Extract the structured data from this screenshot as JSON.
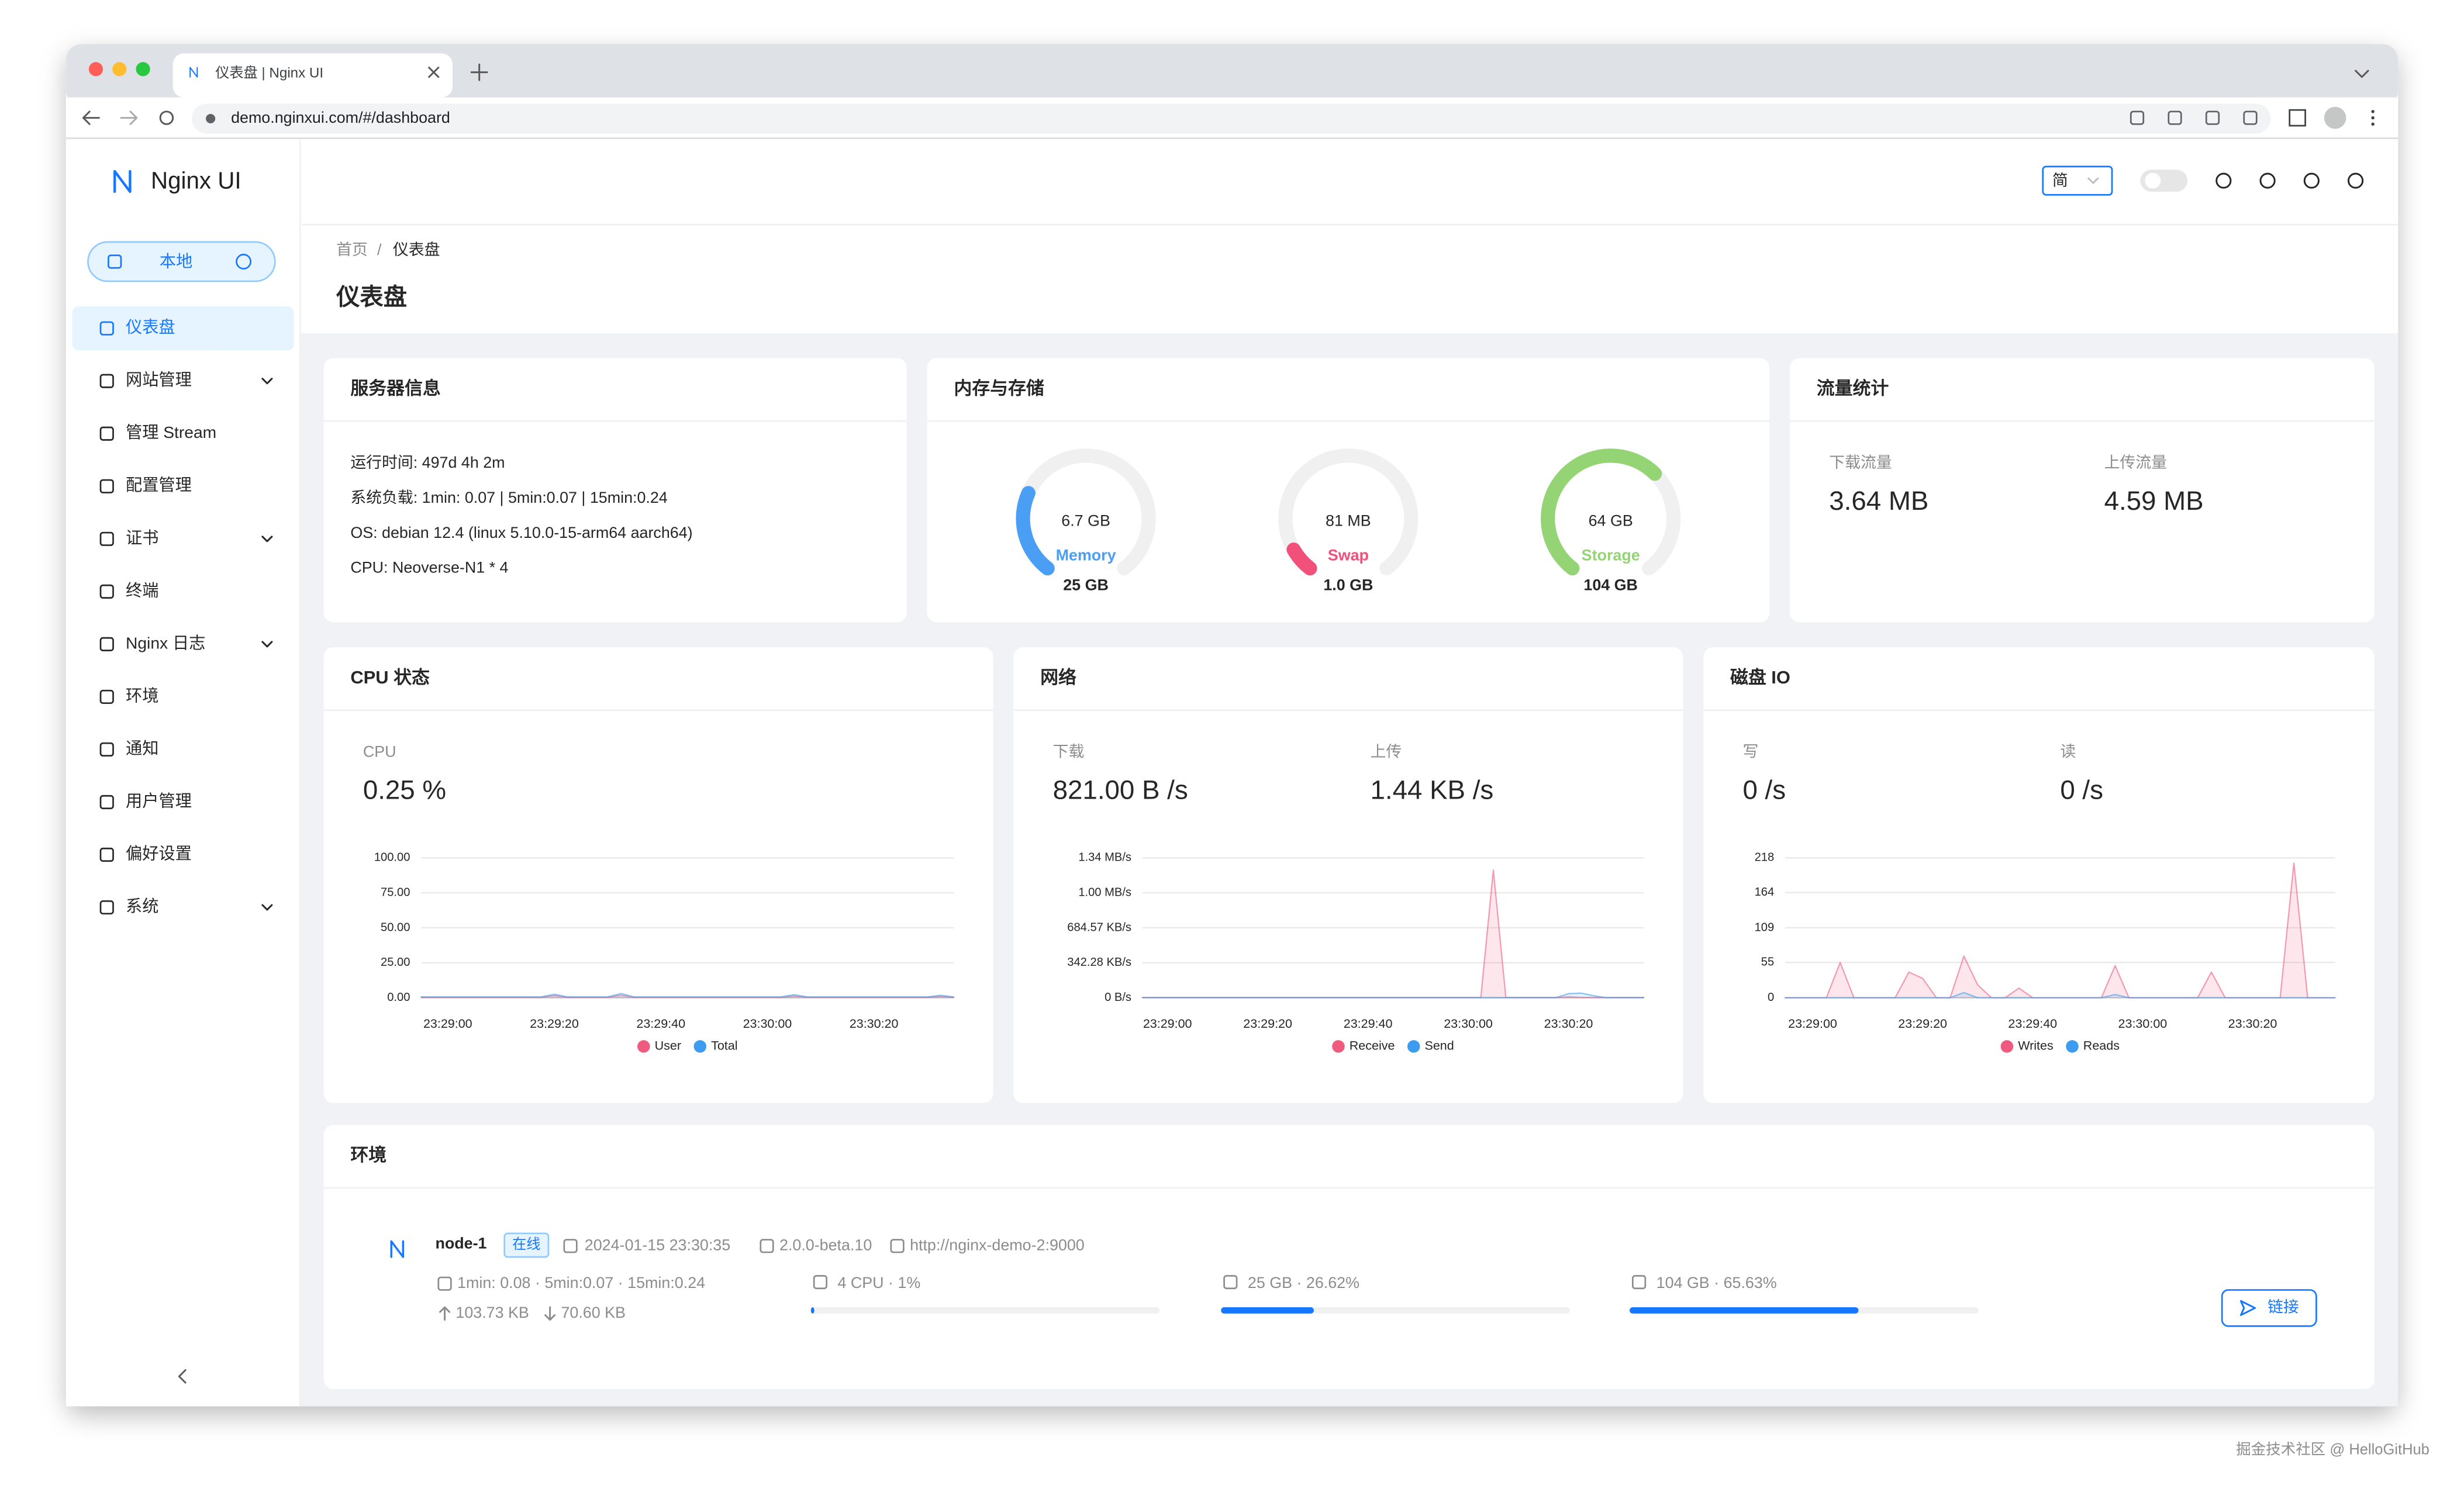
{
  "browser": {
    "tab_title": "仪表盘 | Nginx UI",
    "url": "demo.nginxui.com/#/dashboard"
  },
  "sidebar": {
    "logo": "Nginx UI",
    "node": "本地",
    "menu": [
      {
        "label": "仪表盘",
        "active": true
      },
      {
        "label": "网站管理",
        "expandable": true
      },
      {
        "label": "管理 Stream"
      },
      {
        "label": "配置管理"
      },
      {
        "label": "证书",
        "expandable": true
      },
      {
        "label": "终端"
      },
      {
        "label": "Nginx 日志",
        "expandable": true
      },
      {
        "label": "环境"
      },
      {
        "label": "通知"
      },
      {
        "label": "用户管理"
      },
      {
        "label": "偏好设置"
      },
      {
        "label": "系统",
        "expandable": true
      }
    ]
  },
  "header": {
    "lang": "简"
  },
  "breadcrumb": {
    "items": [
      "首页",
      "仪表盘"
    ],
    "separator": "/"
  },
  "page_title": "仪表盘",
  "server_info": {
    "title": "服务器信息",
    "lines": [
      "运行时间: 497d 4h 2m",
      "系统负载: 1min: 0.07 | 5min:0.07 | 15min:0.24",
      "OS: debian 12.4 (linux 5.10.0-15-arm64 aarch64)",
      "CPU: Neoverse-N1 * 4"
    ]
  },
  "memory": {
    "title": "内存与存储",
    "gauges": [
      {
        "used": "6.7 GB",
        "name": "Memory",
        "total": "25 GB",
        "percent": 26.8,
        "color": "#4a9ff5"
      },
      {
        "used": "81 MB",
        "name": "Swap",
        "total": "1.0 GB",
        "percent": 8,
        "color": "#f0507a"
      },
      {
        "used": "64 GB",
        "name": "Storage",
        "total": "104 GB",
        "percent": 65.63,
        "color": "#95d475"
      }
    ]
  },
  "traffic": {
    "title": "流量统计",
    "items": [
      {
        "label": "下载流量",
        "value": "3.64 MB"
      },
      {
        "label": "上传流量",
        "value": "4.59 MB"
      }
    ]
  },
  "cpu": {
    "title": "CPU 状态",
    "stats": [
      {
        "label": "CPU",
        "value": "0.25 %"
      }
    ],
    "categories": [
      null,
      null,
      "23:29:00",
      null,
      null,
      null,
      null,
      null,
      null,
      null,
      "23:29:20",
      null,
      null,
      null,
      null,
      null,
      null,
      null,
      "23:29:40",
      null,
      null,
      null,
      null,
      null,
      null,
      null,
      "23:30:00",
      null,
      null,
      null,
      null,
      null,
      null,
      null,
      "23:30:20",
      null,
      null,
      null,
      null,
      null,
      null
    ],
    "ylim": [
      0,
      100
    ],
    "yticks": [
      {
        "value": 0,
        "label": "0.00"
      },
      {
        "value": 25,
        "label": "25.00"
      },
      {
        "value": 50,
        "label": "50.00"
      },
      {
        "value": 75,
        "label": "75.00"
      },
      {
        "value": 100,
        "label": "100.00"
      }
    ],
    "series": [
      {
        "name": "User",
        "color": "#ef5b7f",
        "values": [
          0.3,
          0.3,
          0.3,
          0.3,
          0.3,
          0.3,
          0.3,
          0.3,
          0.3,
          0.3,
          1.5,
          0.3,
          0.3,
          0.3,
          0.3,
          1.8,
          0.3,
          0.3,
          0.3,
          0.3,
          0.3,
          0.3,
          0.3,
          0.3,
          0.3,
          0.3,
          0.3,
          0.3,
          1.2,
          0.3,
          0.3,
          0.3,
          0.3,
          0.3,
          0.3,
          0.3,
          0.3,
          0.3,
          0.3,
          1.0,
          0.3
        ]
      },
      {
        "name": "Total",
        "color": "#3b9cf0",
        "values": [
          0.6,
          0.6,
          0.6,
          0.6,
          0.6,
          0.6,
          0.6,
          0.6,
          0.6,
          0.6,
          2.5,
          0.6,
          0.6,
          0.6,
          0.6,
          3.0,
          0.6,
          0.6,
          0.6,
          0.6,
          0.6,
          0.6,
          0.6,
          0.6,
          0.6,
          0.6,
          0.6,
          0.6,
          2.2,
          0.6,
          0.6,
          0.6,
          0.6,
          0.6,
          0.6,
          0.6,
          0.6,
          0.6,
          0.6,
          1.8,
          0.6
        ]
      }
    ]
  },
  "network": {
    "title": "网络",
    "stats": [
      {
        "label": "下载",
        "value": "821.00 B /s"
      },
      {
        "label": "上传",
        "value": "1.44 KB /s"
      }
    ],
    "categories": [
      null,
      null,
      "23:29:00",
      null,
      null,
      null,
      null,
      null,
      null,
      null,
      "23:29:20",
      null,
      null,
      null,
      null,
      null,
      null,
      null,
      "23:29:40",
      null,
      null,
      null,
      null,
      null,
      null,
      null,
      "23:30:00",
      null,
      null,
      null,
      null,
      null,
      null,
      null,
      "23:30:20",
      null,
      null,
      null,
      null,
      null,
      null
    ],
    "ylim": [
      0,
      1369.14
    ],
    "yticks": [
      {
        "value": 0,
        "label": "0 B/s"
      },
      {
        "value": 342.28,
        "label": "342.28 KB/s"
      },
      {
        "value": 684.57,
        "label": "684.57 KB/s"
      },
      {
        "value": 1026.85,
        "label": "1.00 MB/s"
      },
      {
        "value": 1369.14,
        "label": "1.34 MB/s"
      }
    ],
    "series": [
      {
        "name": "Receive",
        "color": "#ef5b7f",
        "values": [
          2,
          2,
          2,
          2,
          2,
          2,
          2,
          2,
          2,
          2,
          2,
          2,
          2,
          2,
          2,
          2,
          2,
          2,
          2,
          2,
          2,
          2,
          2,
          2,
          2,
          2,
          2,
          2,
          1250,
          2,
          2,
          2,
          2,
          2,
          8,
          2,
          2,
          2,
          2,
          2,
          2
        ]
      },
      {
        "name": "Send",
        "color": "#3b9cf0",
        "values": [
          1,
          1,
          1,
          1,
          1,
          1,
          1,
          1,
          1,
          1,
          1,
          1,
          1,
          1,
          1,
          1,
          1,
          1,
          1,
          1,
          1,
          1,
          1,
          1,
          1,
          1,
          1,
          1,
          1,
          1,
          1,
          1,
          1,
          1,
          40,
          45,
          20,
          1,
          1,
          1,
          1
        ]
      }
    ]
  },
  "disk": {
    "title": "磁盘 IO",
    "stats": [
      {
        "label": "写",
        "value": "0 /s"
      },
      {
        "label": "读",
        "value": "0 /s"
      }
    ],
    "categories": [
      null,
      null,
      "23:29:00",
      null,
      null,
      null,
      null,
      null,
      null,
      null,
      "23:29:20",
      null,
      null,
      null,
      null,
      null,
      null,
      null,
      "23:29:40",
      null,
      null,
      null,
      null,
      null,
      null,
      null,
      "23:30:00",
      null,
      null,
      null,
      null,
      null,
      null,
      null,
      "23:30:20",
      null,
      null,
      null,
      null,
      null,
      null
    ],
    "ylim": [
      0,
      218
    ],
    "yticks": [
      0,
      55,
      109,
      164,
      218
    ],
    "series": [
      {
        "name": "Writes",
        "color": "#ef5b7f",
        "values": [
          0,
          0,
          0,
          0,
          55,
          0,
          0,
          0,
          0,
          40,
          30,
          0,
          0,
          65,
          20,
          0,
          0,
          15,
          0,
          0,
          0,
          0,
          0,
          0,
          50,
          0,
          0,
          0,
          0,
          0,
          0,
          40,
          0,
          0,
          0,
          0,
          0,
          210,
          0,
          0,
          0
        ]
      },
      {
        "name": "Reads",
        "color": "#3b9cf0",
        "values": [
          0,
          0,
          0,
          0,
          0,
          0,
          0,
          0,
          0,
          0,
          0,
          0,
          0,
          8,
          0,
          0,
          0,
          0,
          0,
          0,
          0,
          0,
          0,
          0,
          5,
          0,
          0,
          0,
          0,
          0,
          0,
          0,
          0,
          0,
          0,
          0,
          0,
          0,
          0,
          0,
          0
        ]
      }
    ]
  },
  "environment": {
    "title": "环境",
    "node": {
      "name": "node-1",
      "status": "在线",
      "time": "2024-01-15 23:30:35",
      "version": "2.0.0-beta.10",
      "url": "http://nginx-demo-2:9000",
      "load": "1min: 0.08 · 5min:0.07 · 15min:0.24",
      "up": "103.73 KB",
      "down": "70.60 KB",
      "resources": [
        {
          "label": "4 CPU · 1%",
          "progress": 1
        },
        {
          "label": "25 GB · 26.62%",
          "progress": 26.62
        },
        {
          "label": "104 GB · 65.63%",
          "progress": 65.63
        }
      ],
      "button": "链接"
    }
  },
  "watermark": "掘金技术社区 @ HelloGitHub"
}
